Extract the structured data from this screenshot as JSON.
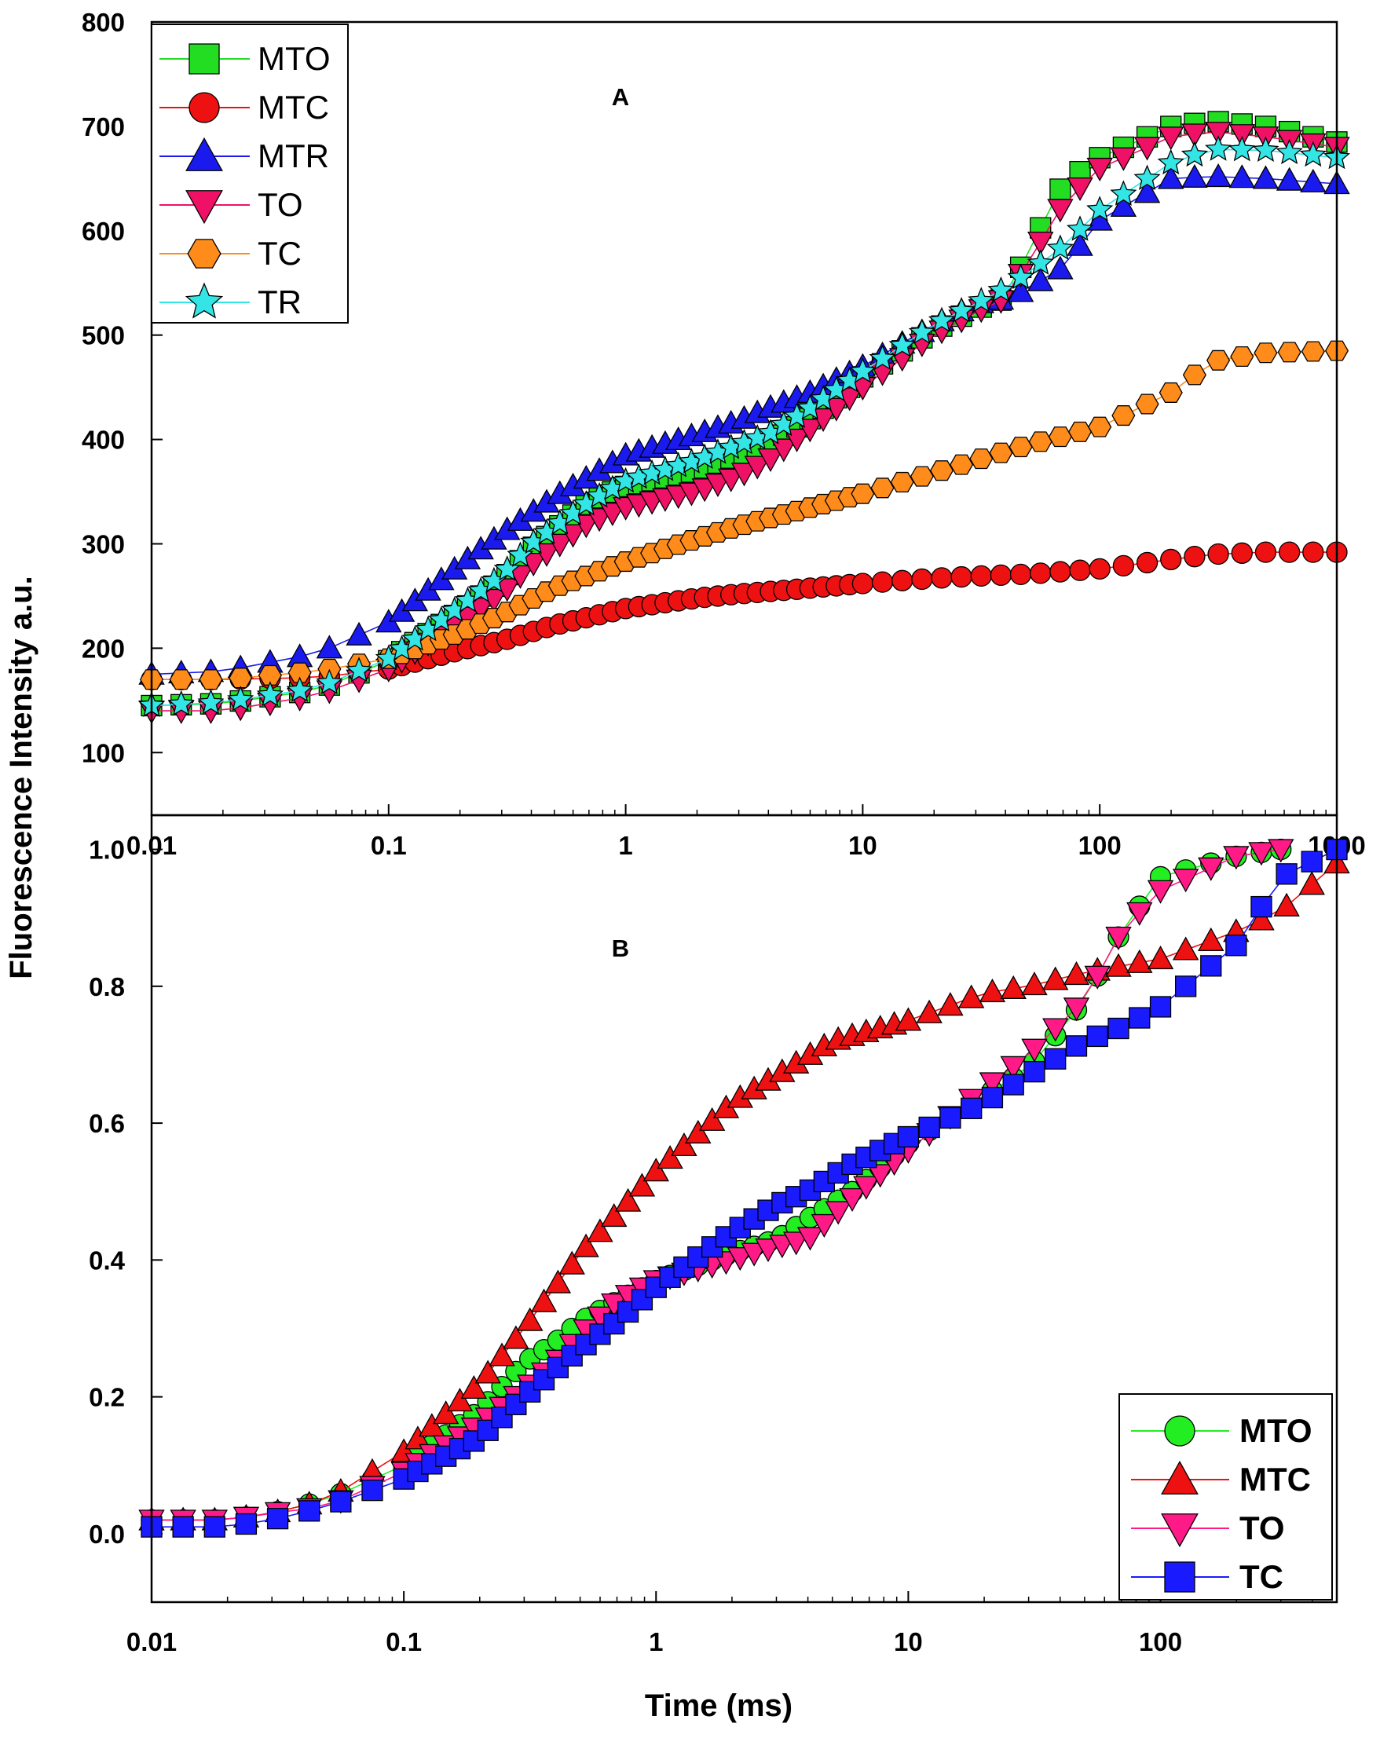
{
  "figure": {
    "ylabel": "Fluorescence Intensity a.u.",
    "xlabel": "Time (ms)"
  },
  "chart_data": [
    {
      "panel": "A",
      "type": "line",
      "title": "A",
      "xscale": "log",
      "xlim": [
        0.01,
        1000
      ],
      "ylim": [
        40,
        800
      ],
      "xticks": [
        {
          "v": 0.01,
          "label": "0.01"
        },
        {
          "v": 0.1,
          "label": "0.1"
        },
        {
          "v": 1,
          "label": "1"
        },
        {
          "v": 10,
          "label": "10"
        },
        {
          "v": 100,
          "label": "100"
        },
        {
          "v": 1000,
          "label": "1000"
        }
      ],
      "yticks": [
        {
          "v": 100,
          "label": "100"
        },
        {
          "v": 200,
          "label": "200"
        },
        {
          "v": 300,
          "label": "300"
        },
        {
          "v": 400,
          "label": "400"
        },
        {
          "v": 500,
          "label": "500"
        },
        {
          "v": 600,
          "label": "600"
        },
        {
          "v": 700,
          "label": "700"
        },
        {
          "v": 800,
          "label": "800"
        }
      ],
      "legend_position": "top-left",
      "series": [
        {
          "name": "MTO",
          "marker": "square",
          "color": "#22dd22",
          "knots": [
            [
              0.01,
              145
            ],
            [
              0.02,
              147
            ],
            [
              0.05,
              160
            ],
            [
              0.1,
              188
            ],
            [
              0.2,
              235
            ],
            [
              0.3,
              265
            ],
            [
              0.4,
              295
            ],
            [
              0.7,
              340
            ],
            [
              1,
              355
            ],
            [
              2,
              370
            ],
            [
              3,
              385
            ],
            [
              4,
              395
            ],
            [
              6,
              420
            ],
            [
              10,
              460
            ],
            [
              20,
              505
            ],
            [
              30,
              525
            ],
            [
              40,
              535
            ],
            [
              50,
              580
            ],
            [
              70,
              645
            ],
            [
              100,
              670
            ],
            [
              200,
              700
            ],
            [
              300,
              705
            ],
            [
              500,
              700
            ],
            [
              1000,
              685
            ]
          ]
        },
        {
          "name": "MTC",
          "marker": "circle",
          "color": "#ee1111",
          "knots": [
            [
              0.01,
              170
            ],
            [
              0.02,
              170
            ],
            [
              0.05,
              172
            ],
            [
              0.1,
              180
            ],
            [
              0.2,
              198
            ],
            [
              0.3,
              207
            ],
            [
              0.5,
              222
            ],
            [
              1,
              238
            ],
            [
              2,
              248
            ],
            [
              3,
              252
            ],
            [
              5,
              256
            ],
            [
              10,
              262
            ],
            [
              20,
              267
            ],
            [
              30,
              269
            ],
            [
              50,
              271
            ],
            [
              100,
              276
            ],
            [
              200,
              285
            ],
            [
              300,
              290
            ],
            [
              500,
              292
            ],
            [
              1000,
              292
            ]
          ]
        },
        {
          "name": "MTR",
          "marker": "triangle-up",
          "color": "#1a1aee",
          "knots": [
            [
              0.01,
              175
            ],
            [
              0.02,
              178
            ],
            [
              0.05,
              195
            ],
            [
              0.1,
              225
            ],
            [
              0.2,
              280
            ],
            [
              0.3,
              310
            ],
            [
              0.5,
              345
            ],
            [
              1,
              385
            ],
            [
              2,
              405
            ],
            [
              3,
              418
            ],
            [
              4,
              430
            ],
            [
              6,
              445
            ],
            [
              10,
              470
            ],
            [
              20,
              510
            ],
            [
              30,
              530
            ],
            [
              40,
              535
            ],
            [
              50,
              545
            ],
            [
              70,
              565
            ],
            [
              100,
              610
            ],
            [
              200,
              650
            ],
            [
              300,
              652
            ],
            [
              500,
              650
            ],
            [
              1000,
              645
            ]
          ]
        },
        {
          "name": "TO",
          "marker": "triangle-down",
          "color": "#ee1166",
          "knots": [
            [
              0.01,
              140
            ],
            [
              0.02,
              140
            ],
            [
              0.05,
              155
            ],
            [
              0.1,
              180
            ],
            [
              0.2,
              225
            ],
            [
              0.3,
              252
            ],
            [
              0.4,
              280
            ],
            [
              0.7,
              320
            ],
            [
              1,
              335
            ],
            [
              2,
              350
            ],
            [
              3,
              365
            ],
            [
              4,
              380
            ],
            [
              6,
              410
            ],
            [
              10,
              450
            ],
            [
              20,
              500
            ],
            [
              30,
              522
            ],
            [
              40,
              535
            ],
            [
              50,
              570
            ],
            [
              70,
              625
            ],
            [
              100,
              660
            ],
            [
              200,
              690
            ],
            [
              300,
              695
            ],
            [
              500,
              690
            ],
            [
              1000,
              680
            ]
          ]
        },
        {
          "name": "TC",
          "marker": "hexagon",
          "color": "#ff8c1a",
          "knots": [
            [
              0.01,
              170
            ],
            [
              0.02,
              170
            ],
            [
              0.05,
              178
            ],
            [
              0.1,
              190
            ],
            [
              0.2,
              215
            ],
            [
              0.3,
              232
            ],
            [
              0.5,
              258
            ],
            [
              1,
              283
            ],
            [
              2,
              305
            ],
            [
              3,
              317
            ],
            [
              5,
              330
            ],
            [
              10,
              348
            ],
            [
              20,
              368
            ],
            [
              30,
              380
            ],
            [
              50,
              395
            ],
            [
              100,
              412
            ],
            [
              200,
              445
            ],
            [
              300,
              475
            ],
            [
              500,
              483
            ],
            [
              1000,
              485
            ]
          ]
        },
        {
          "name": "TR",
          "marker": "star",
          "color": "#33e5e5",
          "knots": [
            [
              0.01,
              145
            ],
            [
              0.02,
              148
            ],
            [
              0.05,
              162
            ],
            [
              0.1,
              190
            ],
            [
              0.2,
              240
            ],
            [
              0.3,
              270
            ],
            [
              0.4,
              300
            ],
            [
              0.7,
              340
            ],
            [
              1,
              360
            ],
            [
              2,
              380
            ],
            [
              3,
              395
            ],
            [
              4,
              405
            ],
            [
              6,
              430
            ],
            [
              10,
              465
            ],
            [
              20,
              510
            ],
            [
              30,
              530
            ],
            [
              40,
              545
            ],
            [
              50,
              560
            ],
            [
              70,
              585
            ],
            [
              100,
              620
            ],
            [
              200,
              665
            ],
            [
              300,
              678
            ],
            [
              500,
              677
            ],
            [
              1000,
              670
            ]
          ]
        }
      ]
    },
    {
      "panel": "B",
      "type": "line",
      "title": "B",
      "xscale": "log",
      "xlim": [
        0.01,
        500
      ],
      "ylim": [
        -0.1,
        1.05
      ],
      "xticks": [
        {
          "v": 0.01,
          "label": "0.01"
        },
        {
          "v": 0.1,
          "label": "0.1"
        },
        {
          "v": 1,
          "label": "1"
        },
        {
          "v": 10,
          "label": "10"
        },
        {
          "v": 100,
          "label": "100"
        }
      ],
      "yticks": [
        {
          "v": 0,
          "label": "0.0"
        },
        {
          "v": 0.2,
          "label": "0.2"
        },
        {
          "v": 0.4,
          "label": "0.4"
        },
        {
          "v": 0.6,
          "label": "0.6"
        },
        {
          "v": 0.8,
          "label": "0.8"
        },
        {
          "v": 1.0,
          "label": "1.0"
        }
      ],
      "legend_position": "bottom-right",
      "series": [
        {
          "name": "MTO",
          "marker": "circle",
          "color": "#22ee22",
          "knots": [
            [
              0.01,
              0.02
            ],
            [
              0.02,
              0.02
            ],
            [
              0.03,
              0.03
            ],
            [
              0.05,
              0.05
            ],
            [
              0.1,
              0.1
            ],
            [
              0.2,
              0.18
            ],
            [
              0.3,
              0.25
            ],
            [
              0.4,
              0.28
            ],
            [
              0.5,
              0.31
            ],
            [
              0.7,
              0.34
            ],
            [
              1,
              0.37
            ],
            [
              2,
              0.41
            ],
            [
              3,
              0.43
            ],
            [
              4,
              0.46
            ],
            [
              6,
              0.5
            ],
            [
              10,
              0.57
            ],
            [
              20,
              0.64
            ],
            [
              30,
              0.68
            ],
            [
              50,
              0.78
            ],
            [
              70,
              0.88
            ],
            [
              100,
              0.96
            ],
            [
              200,
              0.99
            ],
            [
              300,
              1.0
            ]
          ]
        },
        {
          "name": "MTC",
          "marker": "triangle-up",
          "color": "#ee1111",
          "knots": [
            [
              0.01,
              0.02
            ],
            [
              0.02,
              0.02
            ],
            [
              0.03,
              0.03
            ],
            [
              0.05,
              0.05
            ],
            [
              0.1,
              0.12
            ],
            [
              0.2,
              0.22
            ],
            [
              0.3,
              0.3
            ],
            [
              0.5,
              0.41
            ],
            [
              1,
              0.53
            ],
            [
              2,
              0.63
            ],
            [
              3,
              0.67
            ],
            [
              5,
              0.72
            ],
            [
              10,
              0.75
            ],
            [
              20,
              0.79
            ],
            [
              30,
              0.8
            ],
            [
              50,
              0.82
            ],
            [
              100,
              0.84
            ],
            [
              200,
              0.88
            ],
            [
              300,
              0.91
            ],
            [
              500,
              0.98
            ]
          ]
        },
        {
          "name": "TO",
          "marker": "triangle-down",
          "color": "#ff1a88",
          "knots": [
            [
              0.01,
              0.02
            ],
            [
              0.02,
              0.02
            ],
            [
              0.03,
              0.03
            ],
            [
              0.05,
              0.04
            ],
            [
              0.1,
              0.09
            ],
            [
              0.2,
              0.16
            ],
            [
              0.3,
              0.21
            ],
            [
              0.4,
              0.25
            ],
            [
              0.5,
              0.29
            ],
            [
              0.7,
              0.34
            ],
            [
              1,
              0.37
            ],
            [
              2,
              0.4
            ],
            [
              3,
              0.42
            ],
            [
              4,
              0.43
            ],
            [
              6,
              0.49
            ],
            [
              10,
              0.56
            ],
            [
              20,
              0.65
            ],
            [
              30,
              0.7
            ],
            [
              50,
              0.78
            ],
            [
              70,
              0.88
            ],
            [
              100,
              0.94
            ],
            [
              200,
              0.99
            ],
            [
              300,
              1.0
            ]
          ]
        },
        {
          "name": "TC",
          "marker": "square",
          "color": "#1a1aff",
          "knots": [
            [
              0.01,
              0.01
            ],
            [
              0.02,
              0.01
            ],
            [
              0.03,
              0.02
            ],
            [
              0.05,
              0.04
            ],
            [
              0.1,
              0.08
            ],
            [
              0.2,
              0.14
            ],
            [
              0.3,
              0.2
            ],
            [
              0.4,
              0.24
            ],
            [
              0.5,
              0.27
            ],
            [
              0.7,
              0.31
            ],
            [
              1,
              0.36
            ],
            [
              2,
              0.44
            ],
            [
              3,
              0.48
            ],
            [
              4,
              0.5
            ],
            [
              6,
              0.54
            ],
            [
              10,
              0.58
            ],
            [
              20,
              0.63
            ],
            [
              30,
              0.67
            ],
            [
              50,
              0.72
            ],
            [
              70,
              0.74
            ],
            [
              100,
              0.77
            ],
            [
              200,
              0.86
            ],
            [
              300,
              0.96
            ],
            [
              500,
              1.0
            ]
          ]
        }
      ]
    }
  ]
}
